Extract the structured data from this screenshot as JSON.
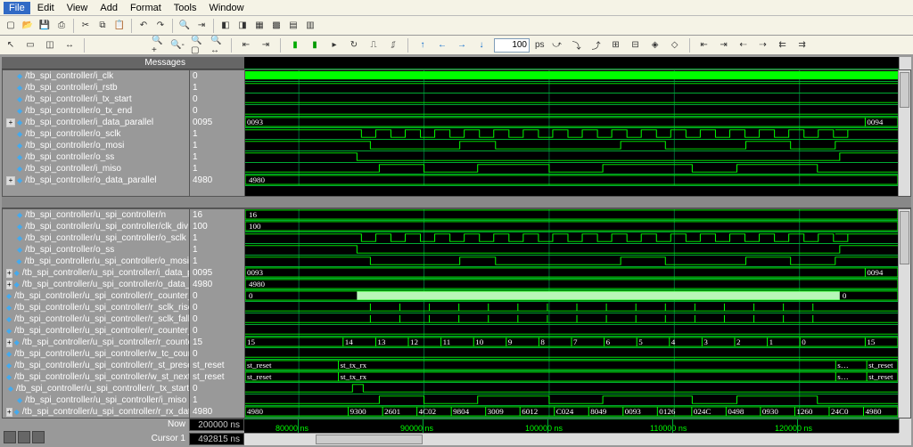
{
  "menu": {
    "items": [
      "File",
      "Edit",
      "View",
      "Add",
      "Format",
      "Tools",
      "Window"
    ],
    "active_index": 0
  },
  "toolbar_time": {
    "value": "100",
    "unit": "ps"
  },
  "headers": {
    "messages": "Messages"
  },
  "now": {
    "label": "Now",
    "value": "200000 ns"
  },
  "cursor": {
    "label": "Cursor 1",
    "value": "492815 ns"
  },
  "time_ticks": [
    "80000 ns",
    "90000 ns",
    "100000 ns",
    "110000 ns",
    "120000 ns"
  ],
  "colors": {
    "bg": "#000000",
    "trace": "#00ff00",
    "grid": "#006633",
    "panel": "#999999",
    "toolbar": "#f5f3e6",
    "highlight": "#b8f7b8"
  },
  "signals_top": [
    {
      "name": "/tb_spi_controller/i_clk",
      "val": "0",
      "type": "clk"
    },
    {
      "name": "/tb_spi_controller/i_rstb",
      "val": "1",
      "type": "high"
    },
    {
      "name": "/tb_spi_controller/i_tx_start",
      "val": "0",
      "type": "low"
    },
    {
      "name": "/tb_spi_controller/o_tx_end",
      "val": "0",
      "type": "low"
    },
    {
      "name": "/tb_spi_controller/i_data_parallel",
      "val": "0095",
      "type": "bus",
      "cells": [
        "0093",
        "",
        "",
        "",
        "",
        "",
        "",
        "",
        "",
        "",
        "",
        "",
        "",
        "",
        "",
        "",
        "",
        "",
        "",
        "0094"
      ],
      "exp": true
    },
    {
      "name": "/tb_spi_controller/o_sclk",
      "val": "1",
      "type": "sclk"
    },
    {
      "name": "/tb_spi_controller/o_mosi",
      "val": "1",
      "type": "mosi"
    },
    {
      "name": "/tb_spi_controller/o_ss",
      "val": "1",
      "type": "ss"
    },
    {
      "name": "/tb_spi_controller/i_miso",
      "val": "1",
      "type": "miso"
    },
    {
      "name": "/tb_spi_controller/o_data_parallel",
      "val": "4980",
      "type": "bus",
      "cells": [
        "4980"
      ],
      "exp": true
    }
  ],
  "signals_bot": [
    {
      "name": "/tb_spi_controller/u_spi_controller/n",
      "val": "16",
      "type": "bus",
      "cells": [
        "16"
      ]
    },
    {
      "name": "/tb_spi_controller/u_spi_controller/clk_div",
      "val": "100",
      "type": "bus",
      "cells": [
        "100"
      ]
    },
    {
      "name": "/tb_spi_controller/u_spi_controller/o_sclk",
      "val": "1",
      "type": "sclk"
    },
    {
      "name": "/tb_spi_controller/o_ss",
      "val": "1",
      "type": "ss"
    },
    {
      "name": "/tb_spi_controller/u_spi_controller/o_mosi",
      "val": "1",
      "type": "mosi"
    },
    {
      "name": "/tb_spi_controller/u_spi_controller/i_data_parallel",
      "val": "0095",
      "type": "bus",
      "cells": [
        "0093",
        "",
        "",
        "",
        "",
        "",
        "",
        "",
        "",
        "",
        "",
        "",
        "",
        "",
        "",
        "",
        "",
        "",
        "",
        "0094"
      ],
      "exp": true
    },
    {
      "name": "/tb_spi_controller/u_spi_controller/o_data_parallel",
      "val": "4980",
      "type": "bus",
      "cells": [
        "4980"
      ],
      "exp": true
    },
    {
      "name": "/tb_spi_controller/u_spi_controller/r_counter_clock",
      "val": "0",
      "type": "counter_hl",
      "cells": [
        "0",
        "",
        "",
        "",
        "",
        "",
        "",
        "",
        "",
        "",
        "",
        "",
        "",
        "",
        "",
        "",
        "",
        "",
        "",
        "0"
      ]
    },
    {
      "name": "/tb_spi_controller/u_spi_controller/r_sclk_rise",
      "val": "0",
      "type": "pulses"
    },
    {
      "name": "/tb_spi_controller/u_spi_controller/r_sclk_fall",
      "val": "0",
      "type": "pulses"
    },
    {
      "name": "/tb_spi_controller/u_spi_controller/r_counter_clock_…",
      "val": "0",
      "type": "low"
    },
    {
      "name": "/tb_spi_controller/u_spi_controller/r_counter_data",
      "val": "15",
      "type": "bus",
      "cells": [
        "15",
        "",
        "",
        "14",
        "13",
        "12",
        "11",
        "10",
        "9",
        "8",
        "7",
        "6",
        "5",
        "4",
        "3",
        "2",
        "1",
        "0",
        "",
        "15"
      ],
      "exp": true
    },
    {
      "name": "/tb_spi_controller/u_spi_controller/w_tc_counter_data",
      "val": "0",
      "type": "low"
    },
    {
      "name": "/tb_spi_controller/u_spi_controller/r_st_present",
      "val": "st_reset",
      "type": "bus",
      "cells": [
        "st_reset",
        "",
        "",
        "st_tx_rx",
        "",
        "",
        "",
        "",
        "",
        "",
        "",
        "",
        "",
        "",
        "",
        "",
        "",
        "",
        "",
        "s…",
        "st_reset"
      ]
    },
    {
      "name": "/tb_spi_controller/u_spi_controller/w_st_next",
      "val": "st_reset",
      "type": "bus",
      "cells": [
        "st_reset",
        "",
        "",
        "st_tx_rx",
        "",
        "",
        "",
        "",
        "",
        "",
        "",
        "",
        "",
        "",
        "",
        "",
        "",
        "",
        "",
        "s…",
        "st_reset"
      ]
    },
    {
      "name": "/tb_spi_controller/u_spi_controller/r_tx_start",
      "val": "0",
      "type": "txstart"
    },
    {
      "name": "/tb_spi_controller/u_spi_controller/i_miso",
      "val": "1",
      "type": "miso"
    },
    {
      "name": "/tb_spi_controller/u_spi_controller/r_rx_data",
      "val": "4980",
      "type": "bus",
      "cells": [
        "4980",
        "",
        "",
        "9300",
        "2601",
        "4C02",
        "9804",
        "3009",
        "6012",
        "C024",
        "8049",
        "0093",
        "0126",
        "024C",
        "0498",
        "0930",
        "1260",
        "24C0",
        "4980"
      ],
      "exp": true
    }
  ]
}
